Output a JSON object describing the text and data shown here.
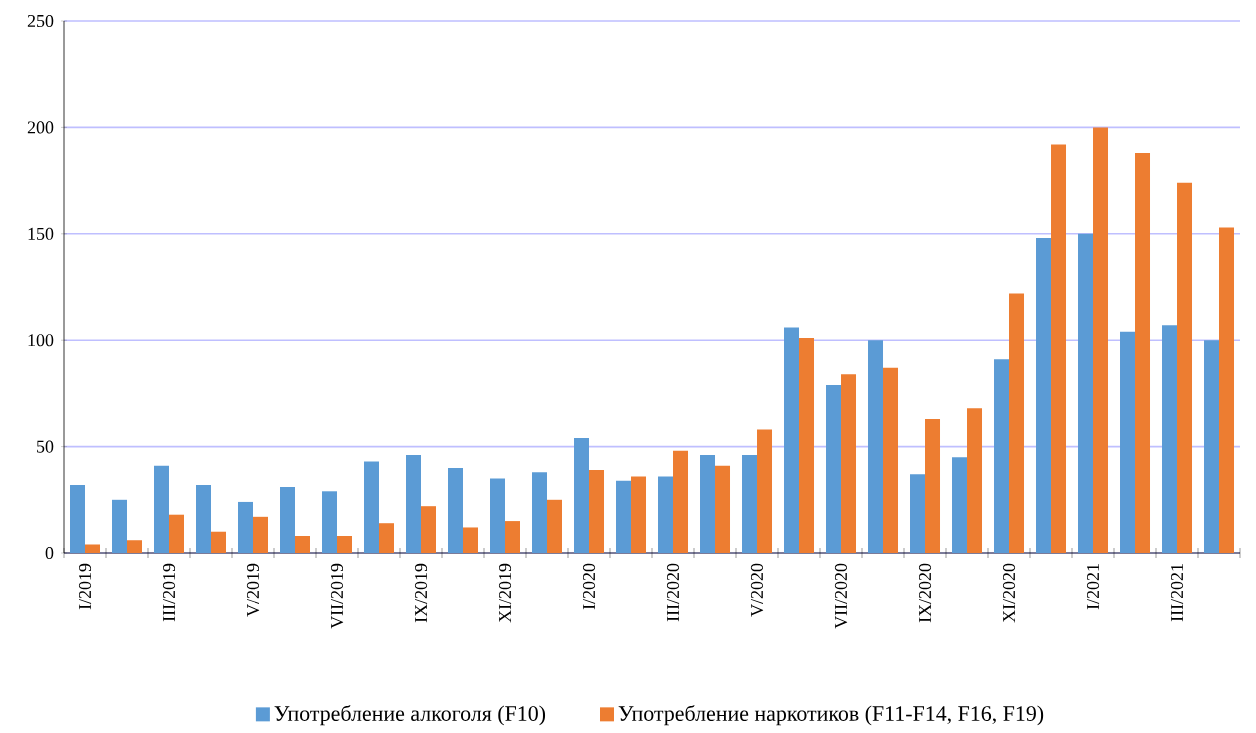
{
  "chart_data": {
    "type": "bar",
    "categories": [
      "I/2019",
      null,
      "III/2019",
      null,
      "V/2019",
      null,
      "VII/2019",
      null,
      "IX/2019",
      null,
      "XI/2019",
      null,
      "I/2020",
      null,
      "III/2020",
      null,
      "V/2020",
      null,
      "VII/2020",
      null,
      "IX/2020",
      null,
      "XI/2020",
      null,
      "I/2021",
      null,
      "III/2021",
      null
    ],
    "series": [
      {
        "name": "Употребление алкоголя (F10)",
        "color": "#5b9bd5",
        "values": [
          32,
          25,
          41,
          32,
          24,
          31,
          29,
          43,
          46,
          40,
          35,
          38,
          54,
          34,
          36,
          46,
          46,
          106,
          79,
          100,
          37,
          45,
          91,
          148,
          150,
          104,
          107,
          100
        ]
      },
      {
        "name": "Употребление наркотиков (F11-F14, F16, F19)",
        "color": "#ed7d31",
        "values": [
          4,
          6,
          18,
          10,
          17,
          8,
          8,
          14,
          22,
          12,
          15,
          25,
          39,
          36,
          48,
          41,
          58,
          101,
          84,
          87,
          63,
          68,
          122,
          192,
          200,
          188,
          174,
          153
        ]
      }
    ],
    "ylim": [
      0,
      250
    ],
    "yticks": [
      0,
      50,
      100,
      150,
      200,
      250
    ],
    "grid": "y",
    "legend": "bottom"
  }
}
